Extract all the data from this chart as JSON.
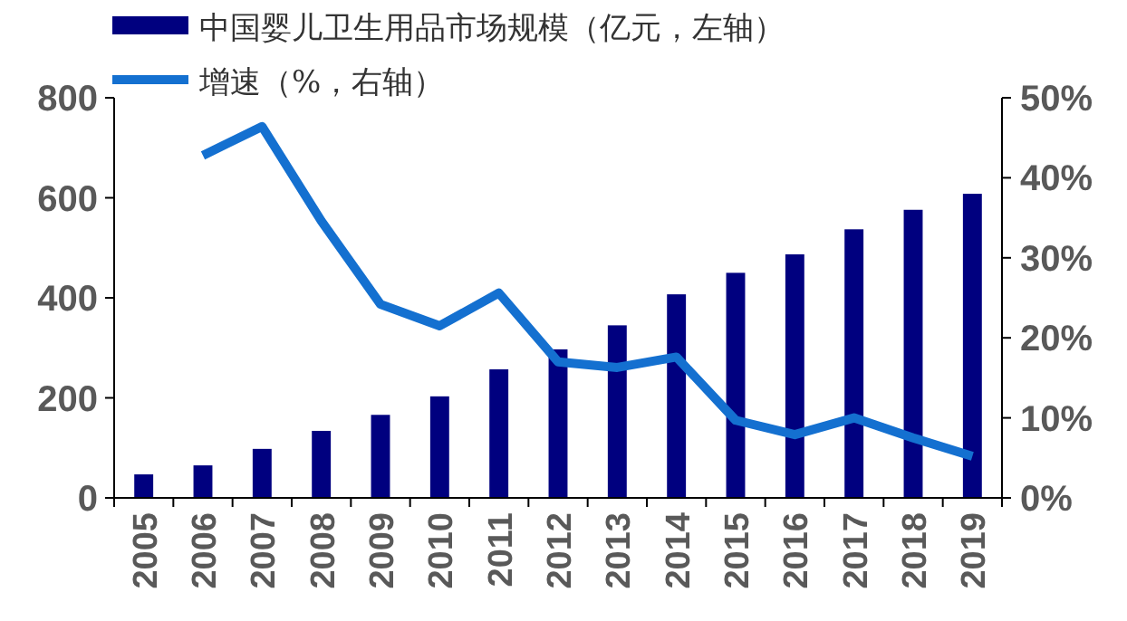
{
  "chart_data": {
    "type": "bar",
    "categories": [
      "2005",
      "2006",
      "2007",
      "2008",
      "2009",
      "2010",
      "2011",
      "2012",
      "2013",
      "2014",
      "2015",
      "2016",
      "2017",
      "2018",
      "2019"
    ],
    "series": [
      {
        "name": "中国婴儿卫生用品市场规模（亿元，左轴）",
        "color": "#00007f",
        "values": [
          47,
          65,
          98,
          134,
          166,
          203,
          257,
          297,
          345,
          407,
          450,
          487,
          537,
          576,
          608
        ]
      },
      {
        "name": "增速（%，右轴）",
        "type": "line",
        "axis": "y2",
        "color": "#1470d0",
        "values": [
          null,
          42.8,
          46.4,
          34.6,
          24.2,
          21.5,
          25.6,
          17,
          16.3,
          17.6,
          9.7,
          7.9,
          10,
          7.5,
          5.2
        ]
      }
    ],
    "ylim": [
      0,
      800
    ],
    "yticks": [
      0,
      200,
      400,
      600,
      800
    ],
    "y2lim": [
      0,
      50
    ],
    "y2ticks": [
      {
        "value": 0,
        "label": "0%"
      },
      {
        "value": 10,
        "label": "10%"
      },
      {
        "value": 20,
        "label": "20%"
      },
      {
        "value": 30,
        "label": "30%"
      },
      {
        "value": 40,
        "label": "40%"
      },
      {
        "value": 50,
        "label": "50%"
      }
    ],
    "legend": "top left",
    "marker": "none",
    "line_style": "solid"
  }
}
